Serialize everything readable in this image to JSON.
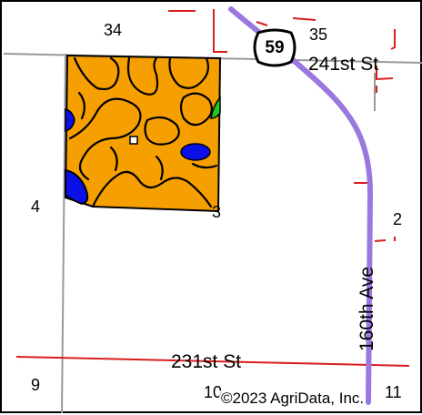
{
  "map": {
    "colors": {
      "field_soil": "#f5a000",
      "water": "#0a10e6",
      "vegetation": "#22c822",
      "soil_boundary": "#000000",
      "section_line": "#9a9a9a",
      "county_road": "#d81e1e",
      "highway": "#9a78e0",
      "background": "#ffffff"
    },
    "section_numbers": {
      "top_left": "34",
      "top_right": "35",
      "mid_left": "4",
      "mid_center": "3",
      "mid_right": "2",
      "bottom_left": "9",
      "bottom_center": "10",
      "bottom_right": "11"
    },
    "roads": {
      "north_road": "241st St",
      "south_road": "231st St",
      "east_road": "160th Ave"
    },
    "highway_shield": {
      "number": "59",
      "icon": "us-highway-shield-icon"
    },
    "copyright": "©2023 AgriData, Inc."
  }
}
